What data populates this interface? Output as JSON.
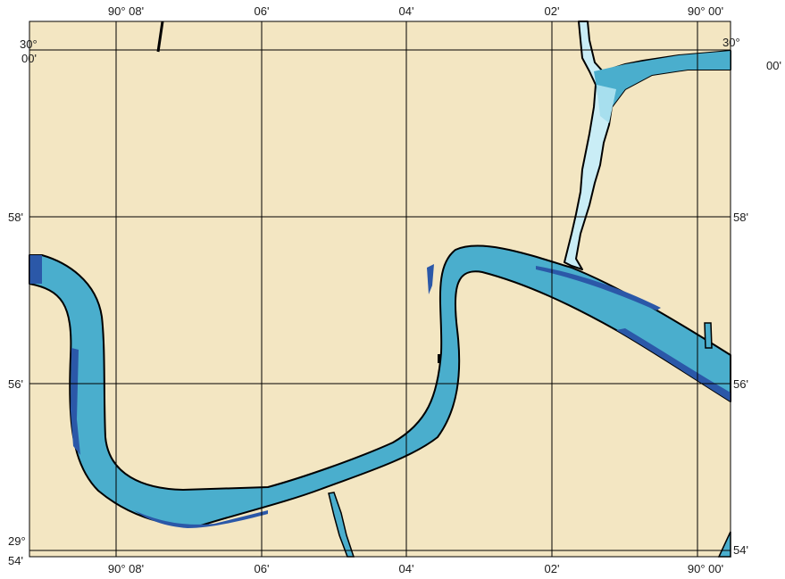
{
  "map": {
    "top_lon_labels": [
      "90° 08'",
      "06'",
      "04'",
      "02'",
      "90° 00'"
    ],
    "bottom_lon_labels": [
      "90° 08'",
      "06'",
      "04'",
      "02'",
      "90° 00'"
    ],
    "left_lat_labels": {
      "top_deg": "30°",
      "top_min": "00'",
      "mid1": "58'",
      "mid2": "56'",
      "bottom_deg": "29°",
      "bottom_min": "54'"
    },
    "right_lat_labels": {
      "top_deg": "30°",
      "top_min": "00'",
      "mid1": "58'",
      "mid2": "56'",
      "bottom": "54'"
    },
    "colors": {
      "land": "#f3e6c2",
      "river_main": "#4aaecd",
      "river_deep": "#2b58a8",
      "channel_light": "#a7dfee",
      "channel_pale": "#c9edf6",
      "shoreline": "#000000",
      "grid": "#000000"
    }
  }
}
